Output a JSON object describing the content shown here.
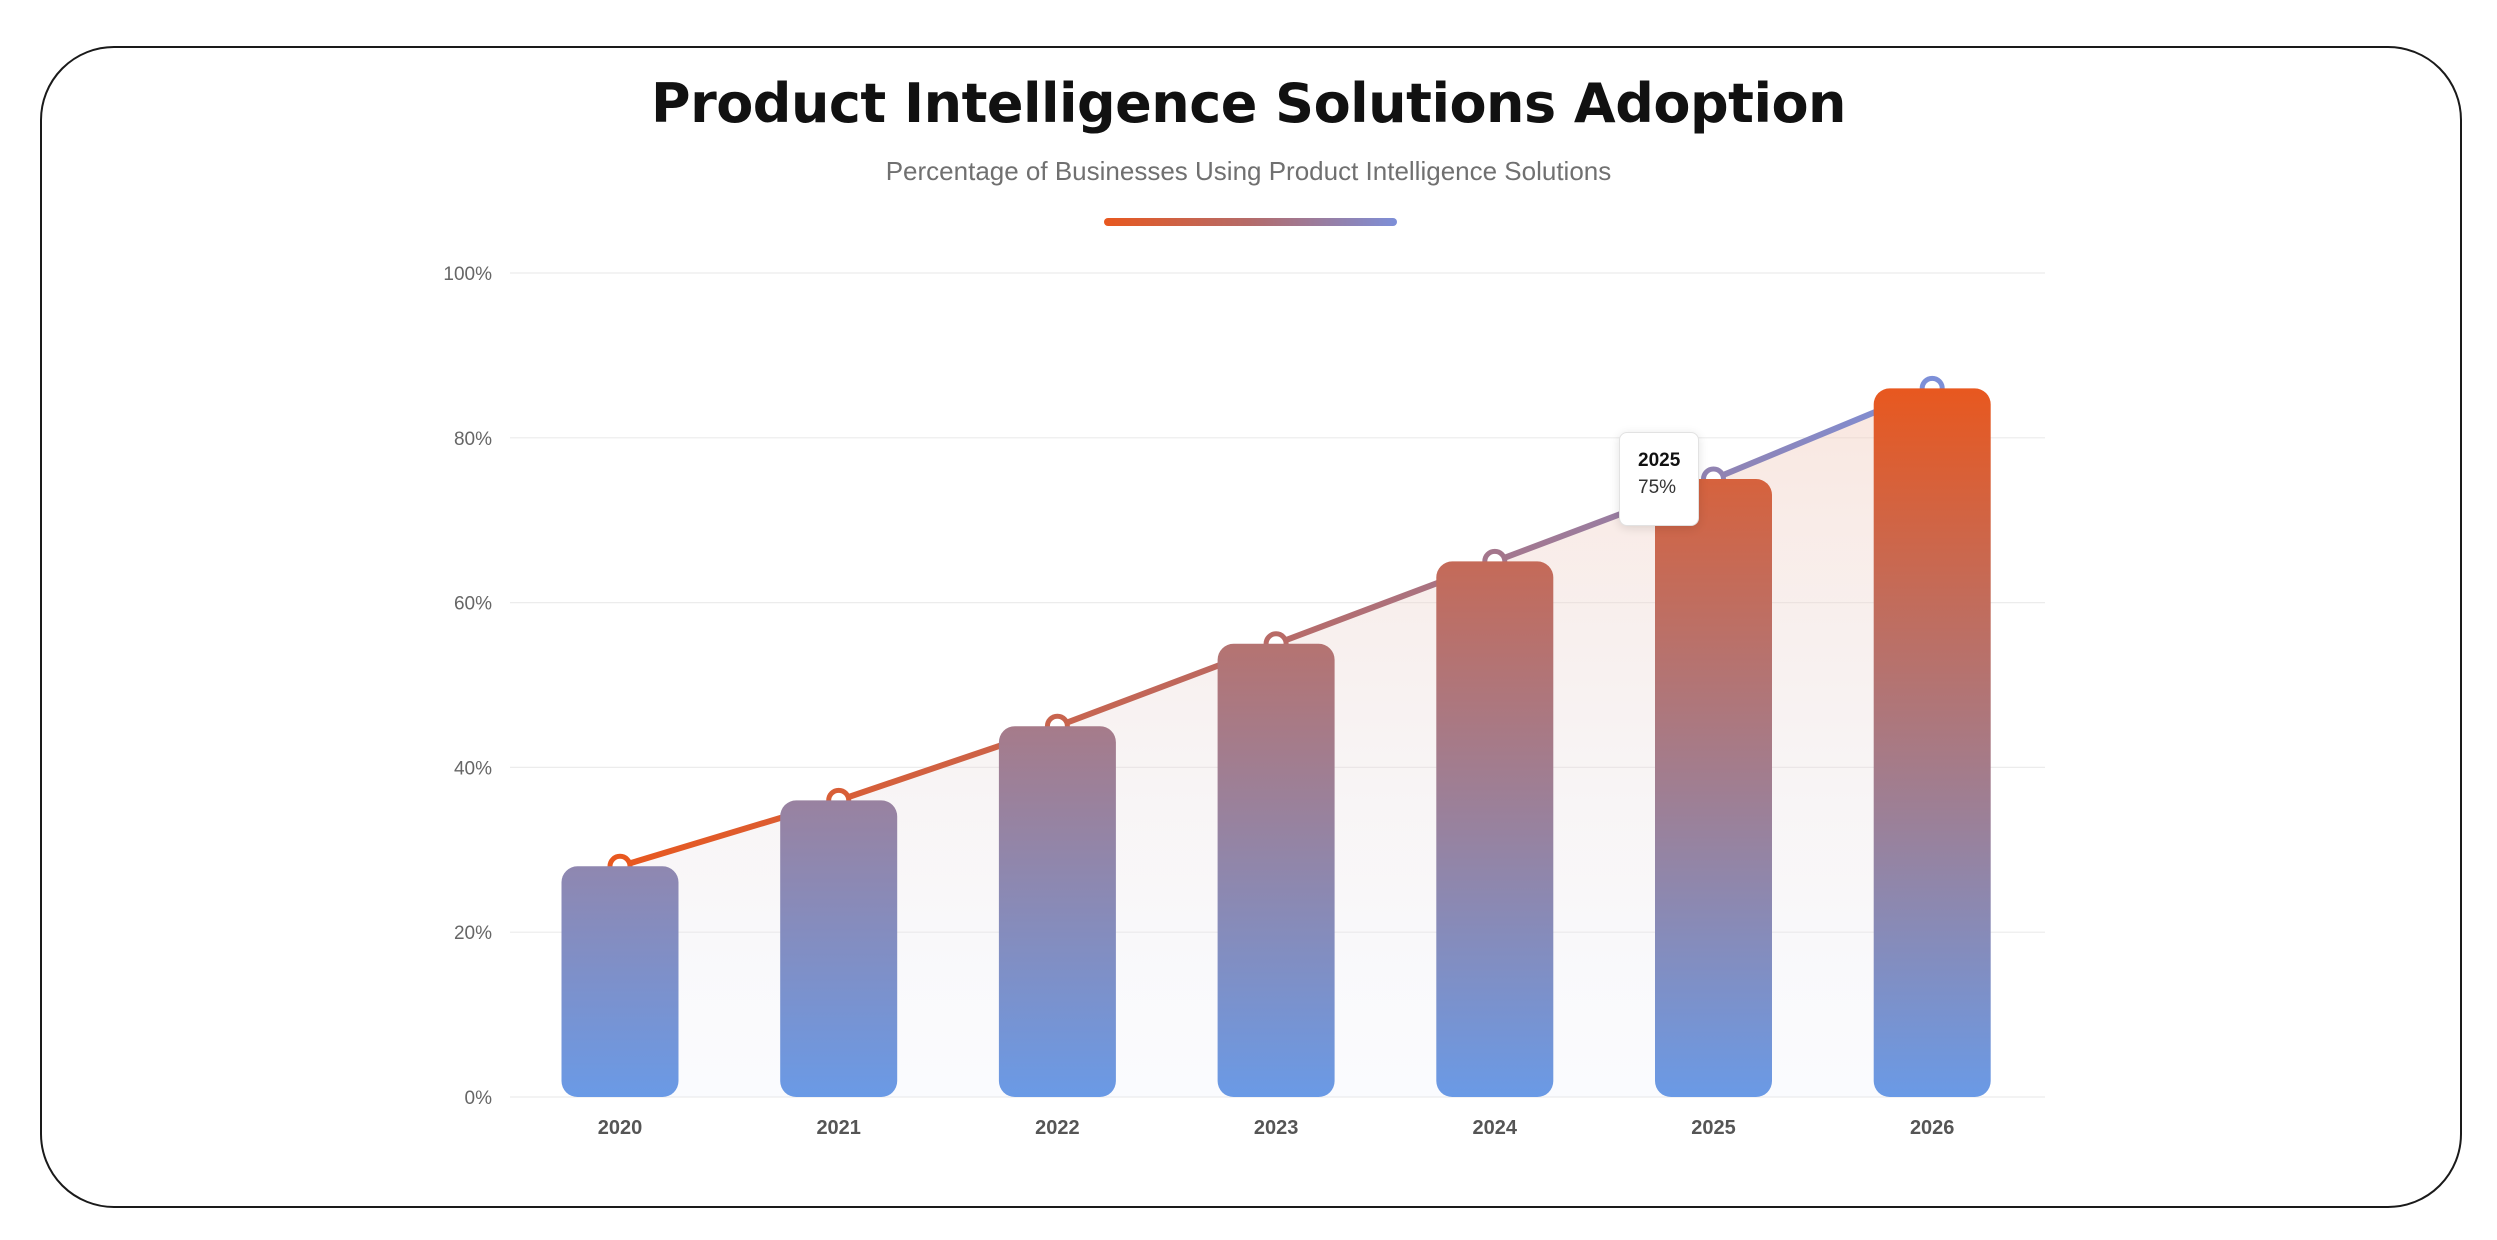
{
  "header": {
    "title": "Product Intelligence Solutions Adoption",
    "subtitle": "Percentage of Businesses Using Product Intelligence Solutions"
  },
  "tooltip": {
    "label": "2025",
    "value": "75%"
  },
  "colors": {
    "accent_orange": "#e8581f",
    "accent_blue": "#6b9ae6",
    "accent_purple": "#7d8fd8",
    "bar_top_low": "#8f87b0",
    "bar_bottom": "#6a9ae6",
    "grid": "#ececec",
    "axis_text": "#666666"
  },
  "chart_data": {
    "type": "bar",
    "categories": [
      "2020",
      "2021",
      "2022",
      "2023",
      "2024",
      "2025",
      "2026"
    ],
    "values": [
      28,
      36,
      45,
      55,
      65,
      75,
      86
    ],
    "line_overlay": true,
    "title": "Product Intelligence Solutions Adoption",
    "subtitle": "Percentage of Businesses Using Product Intelligence Solutions",
    "ylim": [
      0,
      100
    ],
    "yticks": [
      0,
      20,
      40,
      60,
      80,
      100
    ],
    "ytick_labels": [
      "0%",
      "20%",
      "40%",
      "60%",
      "80%",
      "100%"
    ],
    "grid": true,
    "legend": "none"
  }
}
